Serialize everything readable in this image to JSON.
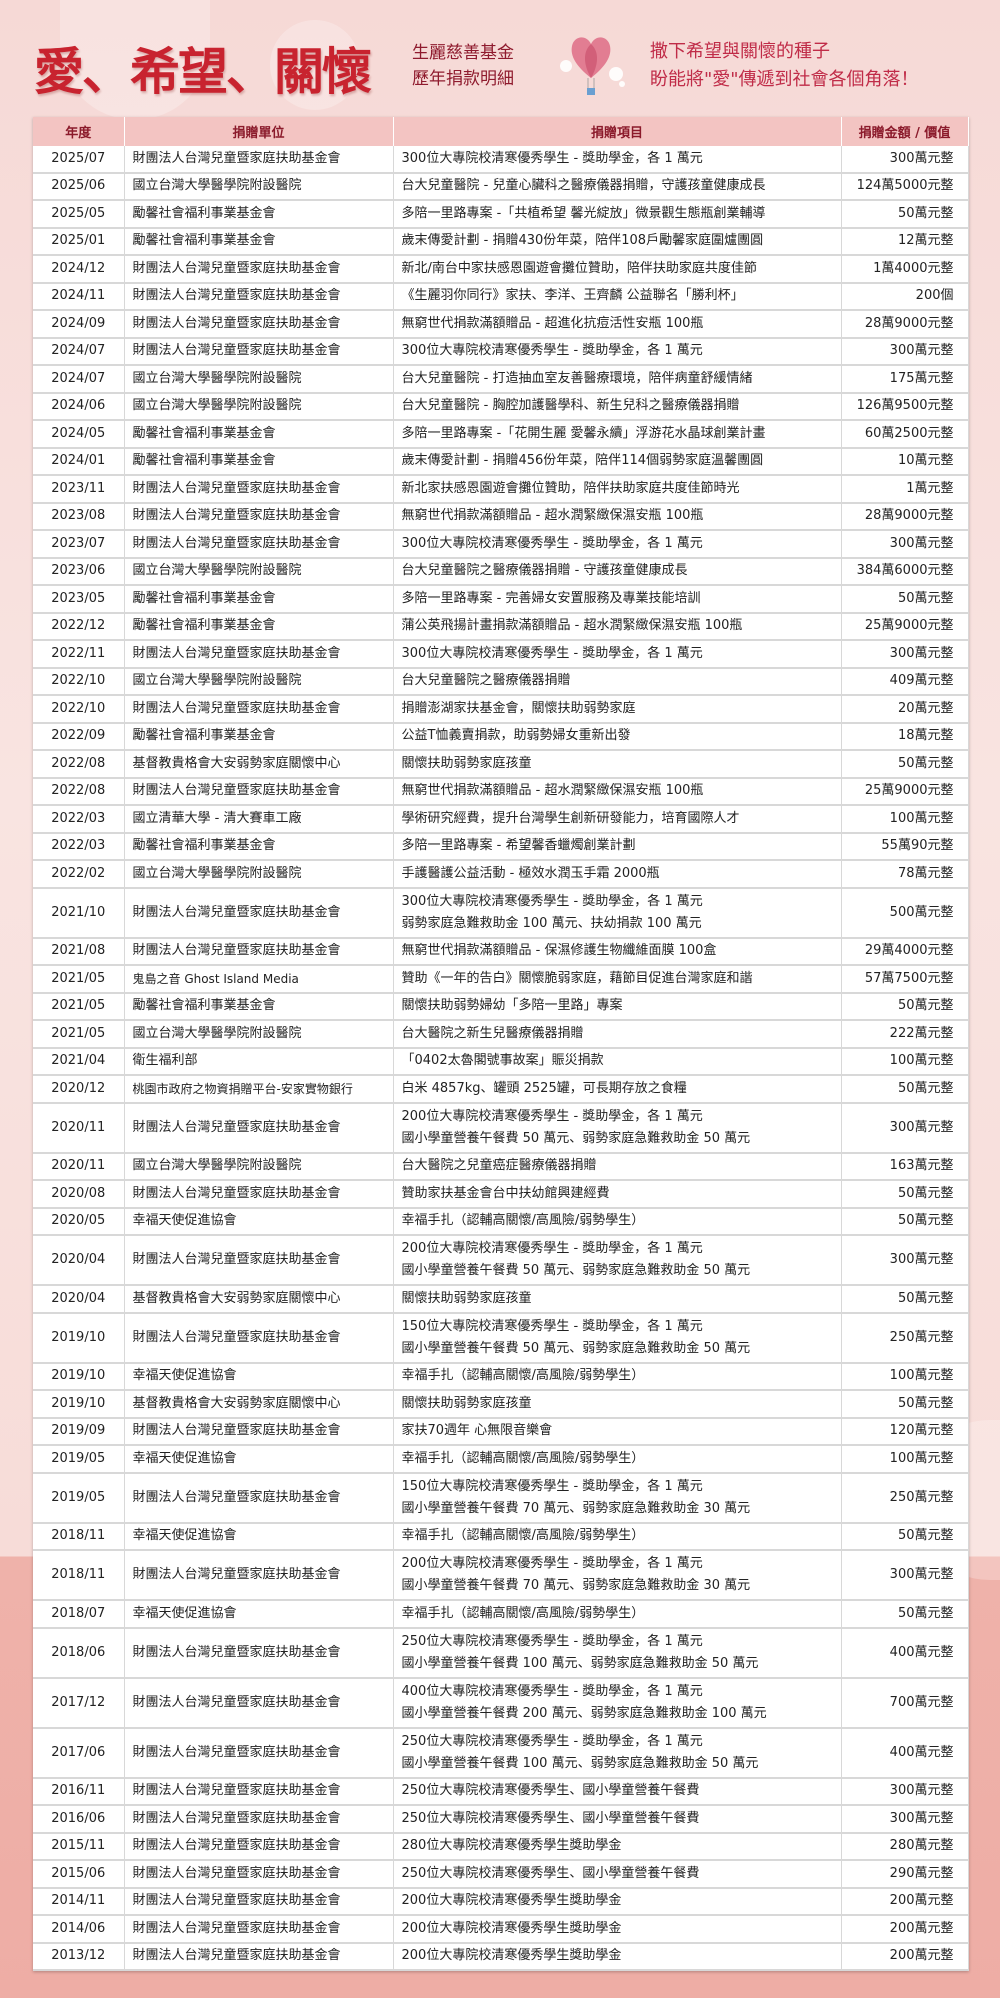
{
  "header": {
    "title": "愛、希望、關懷",
    "subtitle_line1": "生麗慈善基金",
    "subtitle_line2": "歷年捐款明細",
    "slogan_line1": "撒下希望與關懷的種子",
    "slogan_line2": "盼能將\"愛\"傳遞到社會各個角落！",
    "icon": "heart-balloon-icon"
  },
  "colors": {
    "accent": "#c8232f",
    "header_bg": "#f3c4c2",
    "header_text": "#8b1a2b"
  },
  "table": {
    "columns": [
      "年度",
      "捐贈單位",
      "捐贈項目",
      "捐贈金額 / 價值"
    ],
    "rows": [
      [
        "2025/07",
        "財團法人台灣兒童暨家庭扶助基金會",
        "300位大專院校清寒優秀學生 - 獎助學金，各 1 萬元",
        "300萬元整"
      ],
      [
        "2025/06",
        "國立台灣大學醫學院附設醫院",
        "台大兒童醫院 - 兒童心臟科之醫療儀器捐贈，守護孩童健康成長",
        "124萬5000元整"
      ],
      [
        "2025/05",
        "勵馨社會福利事業基金會",
        "多陪一里路專案 -「共植希望 馨光綻放」微景觀生態瓶創業輔導",
        "50萬元整"
      ],
      [
        "2025/01",
        "勵馨社會福利事業基金會",
        "歲末傳愛計劃 - 捐贈430份年菜，陪伴108戶勵馨家庭圍爐團圓",
        "12萬元整"
      ],
      [
        "2024/12",
        "財團法人台灣兒童暨家庭扶助基金會",
        "新北/南台中家扶感恩園遊會攤位贊助，陪伴扶助家庭共度佳節",
        "1萬4000元整"
      ],
      [
        "2024/11",
        "財團法人台灣兒童暨家庭扶助基金會",
        "《生麗羽你同行》家扶、李洋、王齊麟 公益聯名「勝利杯」",
        "200個"
      ],
      [
        "2024/09",
        "財團法人台灣兒童暨家庭扶助基金會",
        "無窮世代捐款滿額贈品 - 超進化抗痘活性安瓶 100瓶",
        "28萬9000元整"
      ],
      [
        "2024/07",
        "財團法人台灣兒童暨家庭扶助基金會",
        "300位大專院校清寒優秀學生 - 獎助學金，各 1 萬元",
        "300萬元整"
      ],
      [
        "2024/07",
        "國立台灣大學醫學院附設醫院",
        "台大兒童醫院 - 打造抽血室友善醫療環境，陪伴病童舒緩情緒",
        "175萬元整"
      ],
      [
        "2024/06",
        "國立台灣大學醫學院附設醫院",
        "台大兒童醫院 - 胸腔加護醫學科、新生兒科之醫療儀器捐贈",
        "126萬9500元整"
      ],
      [
        "2024/05",
        "勵馨社會福利事業基金會",
        "多陪一里路專案 -「花開生麗 愛馨永續」浮游花水晶球創業計畫",
        "60萬2500元整"
      ],
      [
        "2024/01",
        "勵馨社會福利事業基金會",
        "歲末傳愛計劃 - 捐贈456份年菜，陪伴114個弱勢家庭溫馨團圓",
        "10萬元整"
      ],
      [
        "2023/11",
        "財團法人台灣兒童暨家庭扶助基金會",
        "新北家扶感恩園遊會攤位贊助，陪伴扶助家庭共度佳節時光",
        "1萬元整"
      ],
      [
        "2023/08",
        "財團法人台灣兒童暨家庭扶助基金會",
        "無窮世代捐款滿額贈品 - 超水潤緊緻保濕安瓶 100瓶",
        "28萬9000元整"
      ],
      [
        "2023/07",
        "財團法人台灣兒童暨家庭扶助基金會",
        "300位大專院校清寒優秀學生 - 獎助學金，各 1 萬元",
        "300萬元整"
      ],
      [
        "2023/06",
        "國立台灣大學醫學院附設醫院",
        "台大兒童醫院之醫療儀器捐贈 - 守護孩童健康成長",
        "384萬6000元整"
      ],
      [
        "2023/05",
        "勵馨社會福利事業基金會",
        "多陪一里路專案 - 完善婦女安置服務及專業技能培訓",
        "50萬元整"
      ],
      [
        "2022/12",
        "勵馨社會福利事業基金會",
        "蒲公英飛揚計畫捐款滿額贈品 - 超水潤緊緻保濕安瓶 100瓶",
        "25萬9000元整"
      ],
      [
        "2022/11",
        "財團法人台灣兒童暨家庭扶助基金會",
        "300位大專院校清寒優秀學生 - 獎助學金，各 1 萬元",
        "300萬元整"
      ],
      [
        "2022/10",
        "國立台灣大學醫學院附設醫院",
        "台大兒童醫院之醫療儀器捐贈",
        "409萬元整"
      ],
      [
        "2022/10",
        "財團法人台灣兒童暨家庭扶助基金會",
        "捐贈澎湖家扶基金會，關懷扶助弱勢家庭",
        "20萬元整"
      ],
      [
        "2022/09",
        "勵馨社會福利事業基金會",
        "公益T恤義賣捐款，助弱勢婦女重新出發",
        "18萬元整"
      ],
      [
        "2022/08",
        "基督教貴格會大安弱勢家庭關懷中心",
        "關懷扶助弱勢家庭孩童",
        "50萬元整"
      ],
      [
        "2022/08",
        "財團法人台灣兒童暨家庭扶助基金會",
        "無窮世代捐款滿額贈品 - 超水潤緊緻保濕安瓶 100瓶",
        "25萬9000元整"
      ],
      [
        "2022/03",
        "國立清華大學 - 清大賽車工廠",
        "學術研究經費，提升台灣學生創新研發能力，培育國際人才",
        "100萬元整"
      ],
      [
        "2022/03",
        "勵馨社會福利事業基金會",
        "多陪一里路專案 - 希望馨香蠟燭創業計劃",
        "55萬90元整"
      ],
      [
        "2022/02",
        "國立台灣大學醫學院附設醫院",
        "手護醫護公益活動 - 極效水潤玉手霜 2000瓶",
        "78萬元整"
      ],
      [
        "2021/10",
        "財團法人台灣兒童暨家庭扶助基金會",
        "300位大專院校清寒優秀學生 - 獎助學金，各 1 萬元",
        "500萬元整",
        "弱勢家庭急難救助金 100 萬元、扶幼捐款 100 萬元"
      ],
      [
        "2021/08",
        "財團法人台灣兒童暨家庭扶助基金會",
        "無窮世代捐款滿額贈品 - 保濕修護生物纖維面膜 100盒",
        "29萬4000元整"
      ],
      [
        "2021/05",
        "鬼島之音 Ghost Island Media",
        "贊助《一年的告白》關懷脆弱家庭，藉節目促進台灣家庭和諧",
        "57萬7500元整"
      ],
      [
        "2021/05",
        "勵馨社會福利事業基金會",
        "關懷扶助弱勢婦幼「多陪一里路」專案",
        "50萬元整"
      ],
      [
        "2021/05",
        "國立台灣大學醫學院附設醫院",
        "台大醫院之新生兒醫療儀器捐贈",
        "222萬元整"
      ],
      [
        "2021/04",
        "衛生福利部",
        "「0402太魯閣號事故案」賑災捐款",
        "100萬元整"
      ],
      [
        "2020/12",
        "桃園市政府之物資捐贈平台-安家實物銀行",
        "白米 4857kg、罐頭 2525罐，可長期存放之食糧",
        "50萬元整"
      ],
      [
        "2020/11",
        "財團法人台灣兒童暨家庭扶助基金會",
        "200位大專院校清寒優秀學生 - 獎助學金，各 1 萬元",
        "300萬元整",
        "國小學童營養午餐費 50 萬元、弱勢家庭急難救助金 50 萬元"
      ],
      [
        "2020/11",
        "國立台灣大學醫學院附設醫院",
        "台大醫院之兒童癌症醫療儀器捐贈",
        "163萬元整"
      ],
      [
        "2020/08",
        "財團法人台灣兒童暨家庭扶助基金會",
        "贊助家扶基金會台中扶幼館興建經費",
        "50萬元整"
      ],
      [
        "2020/05",
        "幸福天使促進協會",
        "幸福手扎（認輔高關懷/高風險/弱勢學生）",
        "50萬元整"
      ],
      [
        "2020/04",
        "財團法人台灣兒童暨家庭扶助基金會",
        "200位大專院校清寒優秀學生 - 獎助學金，各 1 萬元",
        "300萬元整",
        "國小學童營養午餐費 50 萬元、弱勢家庭急難救助金 50 萬元"
      ],
      [
        "2020/04",
        "基督教貴格會大安弱勢家庭關懷中心",
        "關懷扶助弱勢家庭孩童",
        "50萬元整"
      ],
      [
        "2019/10",
        "財團法人台灣兒童暨家庭扶助基金會",
        "150位大專院校清寒優秀學生 - 獎助學金，各 1 萬元",
        "250萬元整",
        "國小學童營養午餐費 50 萬元、弱勢家庭急難救助金 50 萬元"
      ],
      [
        "2019/10",
        "幸福天使促進協會",
        "幸福手扎（認輔高關懷/高風險/弱勢學生）",
        "100萬元整"
      ],
      [
        "2019/10",
        "基督教貴格會大安弱勢家庭關懷中心",
        "關懷扶助弱勢家庭孩童",
        "50萬元整"
      ],
      [
        "2019/09",
        "財團法人台灣兒童暨家庭扶助基金會",
        "家扶70週年 心無限音樂會",
        "120萬元整"
      ],
      [
        "2019/05",
        "幸福天使促進協會",
        "幸福手扎（認輔高關懷/高風險/弱勢學生）",
        "100萬元整"
      ],
      [
        "2019/05",
        "財團法人台灣兒童暨家庭扶助基金會",
        "150位大專院校清寒優秀學生 - 獎助學金，各 1 萬元",
        "250萬元整",
        "國小學童營養午餐費 70 萬元、弱勢家庭急難救助金 30 萬元"
      ],
      [
        "2018/11",
        "幸福天使促進協會",
        "幸福手扎（認輔高關懷/高風險/弱勢學生）",
        "50萬元整"
      ],
      [
        "2018/11",
        "財團法人台灣兒童暨家庭扶助基金會",
        "200位大專院校清寒優秀學生 - 獎助學金，各 1 萬元",
        "300萬元整",
        "國小學童營養午餐費 70 萬元、弱勢家庭急難救助金 30 萬元"
      ],
      [
        "2018/07",
        "幸福天使促進協會",
        "幸福手扎（認輔高關懷/高風險/弱勢學生）",
        "50萬元整"
      ],
      [
        "2018/06",
        "財團法人台灣兒童暨家庭扶助基金會",
        "250位大專院校清寒優秀學生 - 獎助學金，各 1 萬元",
        "400萬元整",
        "國小學童營養午餐費 100 萬元、弱勢家庭急難救助金 50 萬元"
      ],
      [
        "2017/12",
        "財團法人台灣兒童暨家庭扶助基金會",
        "400位大專院校清寒優秀學生 - 獎助學金，各 1 萬元",
        "700萬元整",
        "國小學童營養午餐費 200 萬元、弱勢家庭急難救助金 100 萬元"
      ],
      [
        "2017/06",
        "財團法人台灣兒童暨家庭扶助基金會",
        "250位大專院校清寒優秀學生 - 獎助學金，各 1 萬元",
        "400萬元整",
        "國小學童營養午餐費 100 萬元、弱勢家庭急難救助金 50 萬元"
      ],
      [
        "2016/11",
        "財團法人台灣兒童暨家庭扶助基金會",
        "250位大專院校清寒優秀學生、國小學童營養午餐費",
        "300萬元整"
      ],
      [
        "2016/06",
        "財團法人台灣兒童暨家庭扶助基金會",
        "250位大專院校清寒優秀學生、國小學童營養午餐費",
        "300萬元整"
      ],
      [
        "2015/11",
        "財團法人台灣兒童暨家庭扶助基金會",
        "280位大專院校清寒優秀學生獎助學金",
        "280萬元整"
      ],
      [
        "2015/06",
        "財團法人台灣兒童暨家庭扶助基金會",
        "250位大專院校清寒優秀學生、國小學童營養午餐費",
        "290萬元整"
      ],
      [
        "2014/11",
        "財團法人台灣兒童暨家庭扶助基金會",
        "200位大專院校清寒優秀學生獎助學金",
        "200萬元整"
      ],
      [
        "2014/06",
        "財團法人台灣兒童暨家庭扶助基金會",
        "200位大專院校清寒優秀學生獎助學金",
        "200萬元整"
      ],
      [
        "2013/12",
        "財團法人台灣兒童暨家庭扶助基金會",
        "200位大專院校清寒優秀學生獎助學金",
        "200萬元整"
      ]
    ]
  }
}
